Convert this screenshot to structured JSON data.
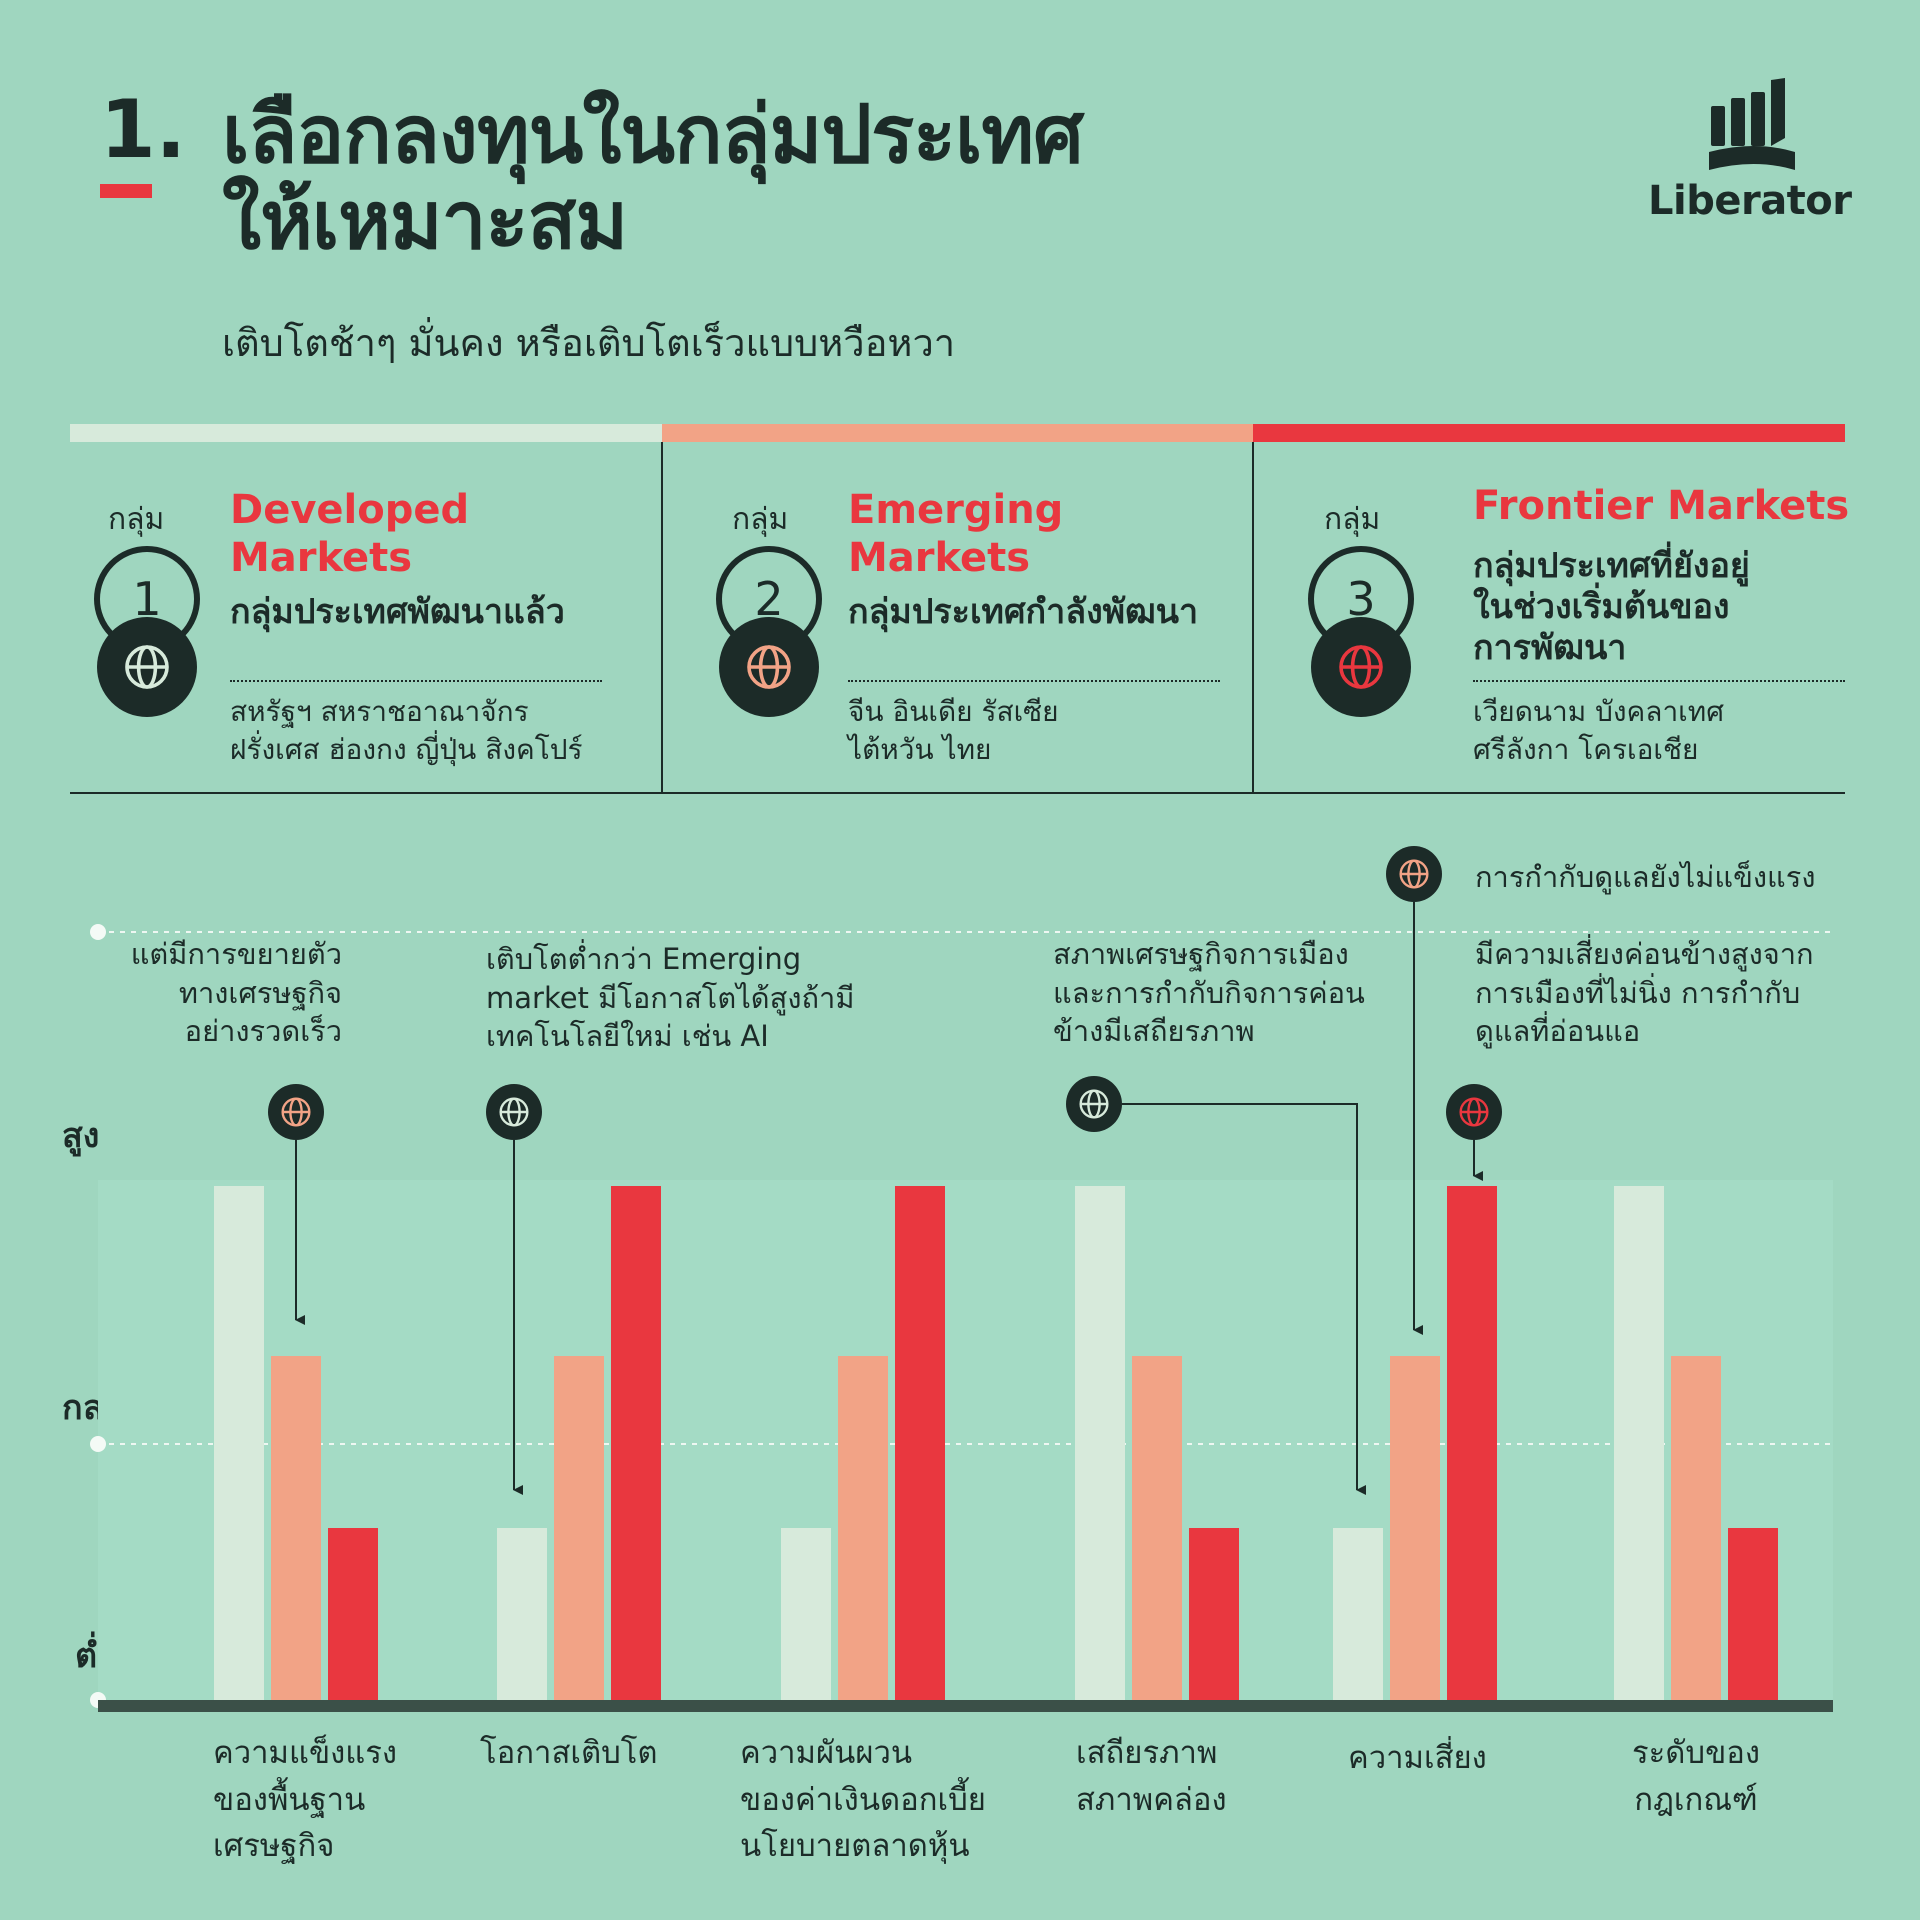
{
  "heading": {
    "number": "1.",
    "title": "เลือกลงทุนในกลุ่มประเทศ\nให้เหมาะสม",
    "subtitle": "เติบโตช้าๆ มั่นคง หรือเติบโตเร็วแบบหวือหวา"
  },
  "brand": {
    "name": "Liberator"
  },
  "colors": {
    "background": "#9fd6bf",
    "dark": "#1c2b28",
    "developed": "#d7eadb",
    "emerging": "#f2a386",
    "frontier": "#e9373f"
  },
  "groups": [
    {
      "label": "กลุ่ม",
      "number": "1",
      "title": "Developed\nMarkets",
      "desc": "กลุ่มประเทศพัฒนาแล้ว",
      "countries": "สหรัฐฯ สหราชอาณาจักร\nฝรั่งเศส ฮ่องกง ญี่ปุ่น สิงคโปร์",
      "icon": "globe-icon"
    },
    {
      "label": "กลุ่ม",
      "number": "2",
      "title": "Emerging\nMarkets",
      "desc": "กลุ่มประเทศกำลังพัฒนา",
      "countries": "จีน อินเดีย รัสเซีย\nไต้หวัน ไทย",
      "icon": "globe-icon"
    },
    {
      "label": "กลุ่ม",
      "number": "3",
      "title": "Frontier Markets",
      "desc": "กลุ่มประเทศที่ยังอยู่\nในช่วงเริ่มต้นของ\nการพัฒนา",
      "countries": "เวียดนาม บังคลาเทศ\nศรีลังกา โครเอเชีย",
      "icon": "globe-icon"
    }
  ],
  "notes": [
    "แต่มีการขยายตัว\nทางเศรษฐกิจ\nอย่างรวดเร็ว",
    "เติบโตต่ำกว่า Emerging\nmarket มีโอกาสโตได้สูงถ้ามี\nเทคโนโลยีใหม่ เช่น AI",
    "สภาพเศรษฐกิจการเมือง\nและการกำกับกิจการค่อน\nข้างมีเสถียรภาพ",
    "การกำกับดูแลยังไม่แข็งแรง",
    "มีความเสี่ยงค่อนข้างสูงจาก\nการเมืองที่ไม่นิ่ง การกำกับ\nดูแลที่อ่อนแอ"
  ],
  "chart_data": {
    "type": "bar",
    "categories": [
      "ความแข็งแรง\nของพื้นฐาน\nเศรษฐกิจ",
      "โอกาสเติบโต",
      "ความผันผวน\nของค่าเงินดอกเบี้ย\nนโยบายตลาดหุ้น",
      "เสถียรภาพ\nสภาพคล่อง",
      "ความเสี่ยง",
      "ระดับของ\nกฎเกณฑ์"
    ],
    "y_levels": [
      "ต่ำ",
      "กลาง",
      "สูง"
    ],
    "ylim": [
      0,
      3
    ],
    "grid": true,
    "series": [
      {
        "color": "#d7eadb",
        "values": [
          3,
          1,
          1,
          3,
          1,
          3
        ]
      },
      {
        "color": "#f2a386",
        "values": [
          2,
          2,
          2,
          2,
          2,
          2
        ]
      },
      {
        "color": "#e9373f",
        "values": [
          1,
          3,
          3,
          1,
          3,
          1
        ]
      }
    ]
  }
}
